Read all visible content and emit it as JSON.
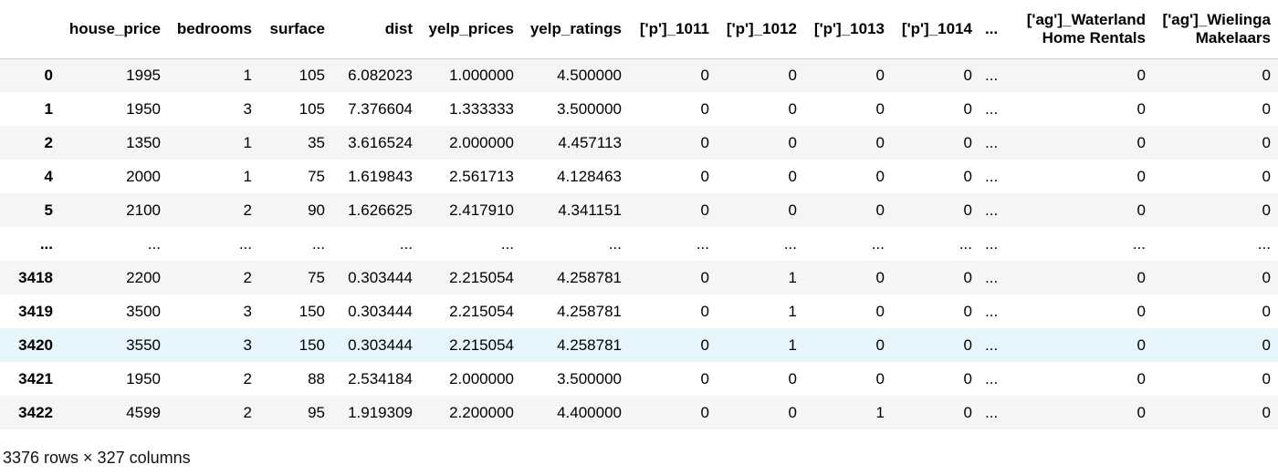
{
  "table": {
    "columns": [
      "",
      "house_price",
      "bedrooms",
      "surface",
      "dist",
      "yelp_prices",
      "yelp_ratings",
      "['p']_1011",
      "['p']_1012",
      "['p']_1013",
      "['p']_1014",
      "...",
      "['ag']_Waterland Home Rentals",
      "['ag']_Wielinga Makelaars"
    ],
    "rows": [
      [
        "0",
        "1995",
        "1",
        "105",
        "6.082023",
        "1.000000",
        "4.500000",
        "0",
        "0",
        "0",
        "0",
        "...",
        "0",
        "0"
      ],
      [
        "1",
        "1950",
        "3",
        "105",
        "7.376604",
        "1.333333",
        "3.500000",
        "0",
        "0",
        "0",
        "0",
        "...",
        "0",
        "0"
      ],
      [
        "2",
        "1350",
        "1",
        "35",
        "3.616524",
        "2.000000",
        "4.457113",
        "0",
        "0",
        "0",
        "0",
        "...",
        "0",
        "0"
      ],
      [
        "4",
        "2000",
        "1",
        "75",
        "1.619843",
        "2.561713",
        "4.128463",
        "0",
        "0",
        "0",
        "0",
        "...",
        "0",
        "0"
      ],
      [
        "5",
        "2100",
        "2",
        "90",
        "1.626625",
        "2.417910",
        "4.341151",
        "0",
        "0",
        "0",
        "0",
        "...",
        "0",
        "0"
      ],
      [
        "...",
        "...",
        "...",
        "...",
        "...",
        "...",
        "...",
        "...",
        "...",
        "...",
        "...",
        "...",
        "...",
        "..."
      ],
      [
        "3418",
        "2200",
        "2",
        "75",
        "0.303444",
        "2.215054",
        "4.258781",
        "0",
        "1",
        "0",
        "0",
        "...",
        "0",
        "0"
      ],
      [
        "3419",
        "3500",
        "3",
        "150",
        "0.303444",
        "2.215054",
        "4.258781",
        "0",
        "1",
        "0",
        "0",
        "...",
        "0",
        "0"
      ],
      [
        "3420",
        "3550",
        "3",
        "150",
        "0.303444",
        "2.215054",
        "4.258781",
        "0",
        "1",
        "0",
        "0",
        "...",
        "0",
        "0"
      ],
      [
        "3421",
        "1950",
        "2",
        "88",
        "2.534184",
        "2.000000",
        "3.500000",
        "0",
        "0",
        "0",
        "0",
        "...",
        "0",
        "0"
      ],
      [
        "3422",
        "4599",
        "2",
        "95",
        "1.919309",
        "2.200000",
        "4.400000",
        "0",
        "0",
        "1",
        "0",
        "...",
        "0",
        "0"
      ]
    ],
    "highlighted_row": "3420",
    "colors": {
      "stripe": "#f5f5f5",
      "hover": "#e6f4fb",
      "border": "#cfcfcf"
    }
  },
  "caption": "3376 rows × 327 columns"
}
